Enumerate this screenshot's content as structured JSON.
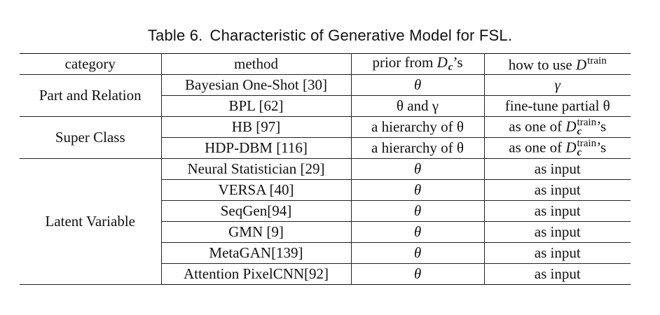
{
  "caption": {
    "label": "Table 6.",
    "title": "Characteristic of Generative Model for FSL."
  },
  "headers": {
    "category": "category",
    "method": "method",
    "prior_prefix": "prior from ",
    "prior_symbol": "D",
    "prior_sub": "c",
    "prior_suffix": "’s",
    "use_prefix": "how to use ",
    "use_symbol": "D",
    "use_sup": "train"
  },
  "groups": [
    {
      "category": "Part and Relation",
      "rows": [
        {
          "method": "Bayesian One-Shot [30]",
          "prior": "θ",
          "use": "γ"
        },
        {
          "method": "BPL [62]",
          "prior": "θ and γ",
          "use": "fine-tune partial θ"
        }
      ]
    },
    {
      "category": "Super Class",
      "rows": [
        {
          "method": "HB [97]",
          "prior": "a hierarchy of θ",
          "use_prefix": "as one of ",
          "use_symbol": "D",
          "use_sup": "train",
          "use_sub": "c",
          "use_suffix": "’s"
        },
        {
          "method": "HDP-DBM [116]",
          "prior": "a hierarchy of θ",
          "use_prefix": "as one of ",
          "use_symbol": "D",
          "use_sup": "train",
          "use_sub": "c",
          "use_suffix": "’s"
        }
      ]
    },
    {
      "category": "Latent Variable",
      "rows": [
        {
          "method": "Neural Statistician [29]",
          "prior": "θ",
          "use": "as input"
        },
        {
          "method": "VERSA [40]",
          "prior": "θ",
          "use": "as input"
        },
        {
          "method": "SeqGen[94]",
          "prior": "θ",
          "use": "as input"
        },
        {
          "method": "GMN [9]",
          "prior": "θ",
          "use": "as input"
        },
        {
          "method": "MetaGAN[139]",
          "prior": "θ",
          "use": "as input"
        },
        {
          "method": "Attention PixelCNN[92]",
          "prior": "θ",
          "use": "as input"
        }
      ]
    }
  ]
}
